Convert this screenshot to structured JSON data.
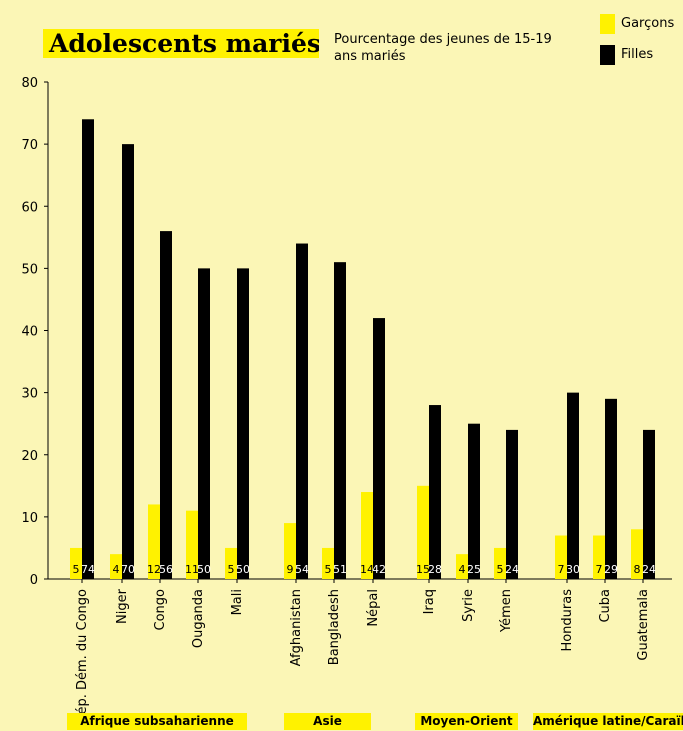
{
  "title": "Adolescents mariés",
  "subtitle": "Pourcentage des jeunes de 15-19 ans mariés",
  "legend": [
    {
      "label": "Garçons",
      "color": "#fff200"
    },
    {
      "label": "Filles",
      "color": "#000000"
    }
  ],
  "regions": [
    "Afrique subsaharienne",
    "Asie",
    "Moyen-Orient",
    "Amérique latine/Caraïbes"
  ],
  "chart_data": {
    "type": "bar",
    "title": "Adolescents mariés",
    "subtitle": "Pourcentage des jeunes de 15-19 ans mariés",
    "ylim": [
      0,
      80
    ],
    "yticks": [
      0,
      10,
      20,
      30,
      40,
      50,
      60,
      70,
      80
    ],
    "grid": false,
    "legend_position": "top-right",
    "categories": [
      "Rép. Dém. du Congo",
      "Niger",
      "Congo",
      "Ouganda",
      "Mali",
      "Afghanistan",
      "Bangladesh",
      "Népal",
      "Iraq",
      "Syrie",
      "Yémen",
      "Honduras",
      "Cuba",
      "Guatemala"
    ],
    "groups": [
      {
        "name": "Afrique subsaharienne",
        "categories": [
          "Rép. Dém. du Congo",
          "Niger",
          "Congo",
          "Ouganda",
          "Mali"
        ]
      },
      {
        "name": "Asie",
        "categories": [
          "Afghanistan",
          "Bangladesh",
          "Népal"
        ]
      },
      {
        "name": "Moyen-Orient",
        "categories": [
          "Iraq",
          "Syrie",
          "Yémen"
        ]
      },
      {
        "name": "Amérique latine/Caraïbes",
        "categories": [
          "Honduras",
          "Cuba",
          "Guatemala"
        ]
      }
    ],
    "series": [
      {
        "name": "Garçons",
        "color": "#fff200",
        "label_color": "#000000",
        "values": [
          5,
          4,
          12,
          11,
          5,
          9,
          5,
          14,
          15,
          4,
          5,
          7,
          7,
          8
        ]
      },
      {
        "name": "Filles",
        "color": "#000000",
        "label_color": "#ffffff",
        "values": [
          74,
          70,
          56,
          50,
          50,
          54,
          51,
          42,
          28,
          25,
          24,
          30,
          29,
          24
        ]
      }
    ]
  }
}
